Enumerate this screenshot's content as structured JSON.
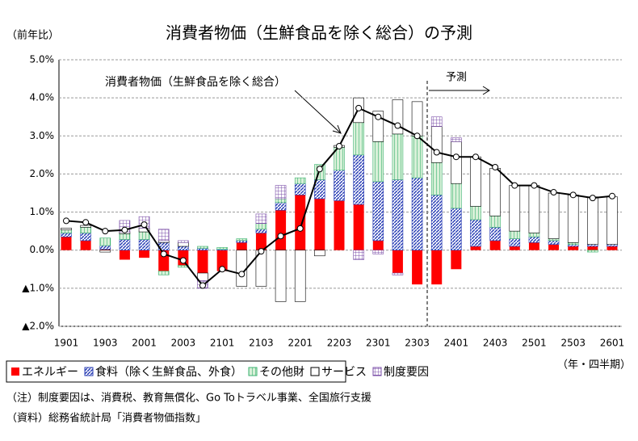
{
  "chart_data": {
    "type": "bar",
    "title": "消費者物価（生鮮食品を除く総合）の予測",
    "y_unit_label": "（前年比）",
    "x_unit_label": "（年・四半期）",
    "forecast_label": "予測",
    "line_label": "消費者物価（生鮮食品を除く総合）",
    "notes": [
      "（注）制度要因は、消費税、教育無償化、Go Toトラベル事業、全国旅行支援",
      "（資料）総務省統計局「消費者物価指数」"
    ],
    "categories": [
      "1901",
      null,
      "1903",
      null,
      "2001",
      null,
      "2003",
      null,
      "2101",
      null,
      "2103",
      null,
      "2201",
      null,
      "2203",
      null,
      "2301",
      null,
      "2303",
      null,
      "2401",
      null,
      "2403",
      null,
      "2501",
      null,
      "2503",
      null,
      "2601"
    ],
    "ylim": [
      -2.0,
      5.0
    ],
    "yticks": [
      {
        "value": -2.0,
        "label": "▲2.0%"
      },
      {
        "value": -1.0,
        "label": "▲1.0%"
      },
      {
        "value": 0.0,
        "label": "0.0%"
      },
      {
        "value": 1.0,
        "label": "1.0%"
      },
      {
        "value": 2.0,
        "label": "2.0%"
      },
      {
        "value": 3.0,
        "label": "3.0%"
      },
      {
        "value": 4.0,
        "label": "4.0%"
      },
      {
        "value": 5.0,
        "label": "5.0%"
      }
    ],
    "grid": true,
    "series": [
      {
        "name": "エネルギー",
        "color": "#ff0000",
        "fill": "solid",
        "values": [
          0.35,
          0.25,
          0.02,
          -0.25,
          -0.2,
          -0.55,
          -0.4,
          -0.6,
          -0.55,
          0.2,
          0.45,
          1.05,
          1.45,
          1.35,
          1.3,
          1.2,
          0.25,
          -0.6,
          -0.9,
          -0.9,
          -0.5,
          0.1,
          0.25,
          0.1,
          0.2,
          0.15,
          0.1,
          0.1,
          0.1
        ]
      },
      {
        "name": "食料（除く生鮮食品、外食）",
        "color": "#2b3fb5",
        "fill": "hatch",
        "values": [
          0.1,
          0.2,
          0.1,
          0.28,
          0.28,
          0.2,
          0.1,
          0.05,
          0.02,
          0.05,
          0.1,
          0.2,
          0.3,
          0.5,
          0.8,
          1.3,
          1.55,
          1.85,
          1.9,
          1.45,
          1.1,
          0.7,
          0.35,
          0.2,
          0.15,
          0.1,
          0.05,
          0.05,
          0.05
        ]
      },
      {
        "name": "その他財",
        "color": "#3cb371",
        "fill": "hatch-light",
        "values": [
          0.08,
          0.15,
          0.2,
          0.15,
          0.2,
          -0.1,
          -0.05,
          0.05,
          0.05,
          0.05,
          0.15,
          0.1,
          0.15,
          0.4,
          0.6,
          0.85,
          1.05,
          1.2,
          1.1,
          0.85,
          0.65,
          0.35,
          0.3,
          0.2,
          0.1,
          0.05,
          0.05,
          -0.05,
          0.0
        ]
      },
      {
        "name": "サービス",
        "color": "#ffffff",
        "fill": "outline",
        "values": [
          0.05,
          0.05,
          -0.05,
          0.05,
          0.1,
          0.05,
          0.1,
          -0.2,
          0.0,
          -0.95,
          -0.95,
          -1.35,
          -1.35,
          -0.15,
          0.05,
          0.65,
          0.8,
          0.9,
          0.9,
          0.95,
          1.1,
          1.3,
          1.25,
          1.2,
          1.25,
          1.2,
          1.25,
          1.25,
          1.25
        ]
      },
      {
        "name": "制度要因",
        "color": "#7b4fa8",
        "fill": "grid",
        "values": [
          0,
          0,
          0,
          0.3,
          0.3,
          0.3,
          0.05,
          -0.2,
          0,
          0,
          0.25,
          0.35,
          0,
          0,
          0,
          -0.25,
          -0.1,
          -0.05,
          0,
          0.25,
          0.1,
          0,
          0,
          0,
          0,
          0,
          0,
          0,
          0
        ]
      },
      {
        "name": "消費者物価（生鮮食品を除く総合）",
        "color": "#000000",
        "kind": "line",
        "values": [
          0.77,
          0.73,
          0.5,
          0.53,
          0.67,
          -0.1,
          -0.27,
          -0.93,
          -0.5,
          -0.63,
          -0.03,
          0.37,
          0.57,
          2.13,
          2.73,
          3.73,
          3.5,
          3.27,
          3.0,
          2.57,
          2.45,
          2.45,
          2.18,
          1.7,
          1.7,
          1.52,
          1.45,
          1.37,
          1.42
        ]
      }
    ]
  }
}
